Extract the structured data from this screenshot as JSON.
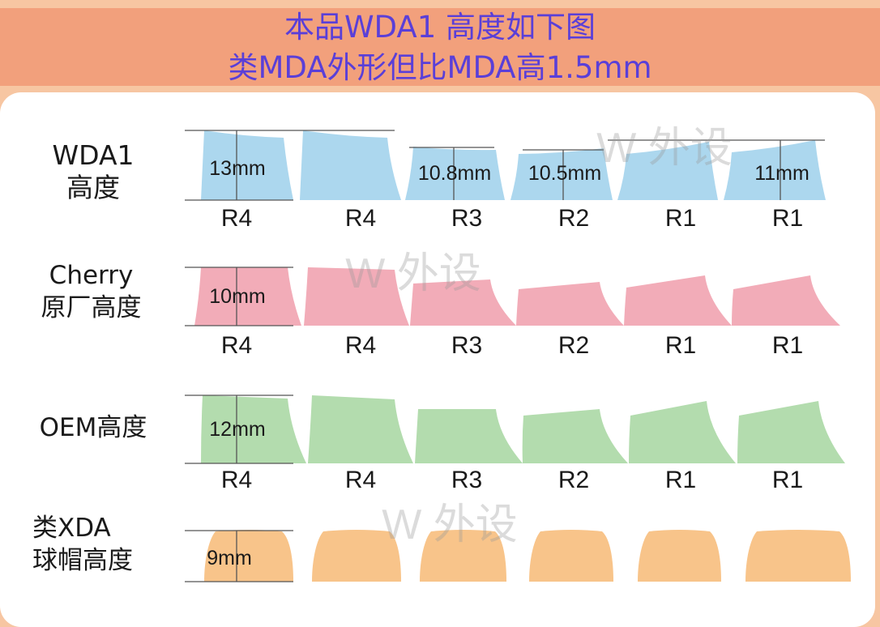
{
  "header": {
    "line1": "本品WDA1 高度如下图",
    "line2": "类MDA外形但比MDA高1.5mm"
  },
  "watermark": "W 外设",
  "colors": {
    "header_bg": "#f2a07c",
    "title_text": "#5a3fd8",
    "wda": "#acd7ee",
    "cherry": "#f2acb8",
    "oem": "#b3dcae",
    "xda": "#f8c48a"
  },
  "rows": [
    {
      "label_lines": [
        "WDA1",
        "高度"
      ],
      "rows_labels": [
        "R4",
        "R4",
        "R3",
        "R2",
        "R1",
        "R1"
      ],
      "measure": "13mm",
      "extra_measures": [
        "10.8mm",
        "10.5mm",
        "11mm"
      ]
    },
    {
      "label_lines": [
        "Cherry",
        "原厂高度"
      ],
      "rows_labels": [
        "R4",
        "R4",
        "R3",
        "R2",
        "R1",
        "R1"
      ],
      "measure": "10mm"
    },
    {
      "label_lines": [
        "OEM高度"
      ],
      "rows_labels": [
        "R4",
        "R4",
        "R3",
        "R2",
        "R1",
        "R1"
      ],
      "measure": "12mm"
    },
    {
      "label_lines": [
        "类XDA",
        "球帽高度"
      ],
      "measure": "9mm"
    }
  ]
}
